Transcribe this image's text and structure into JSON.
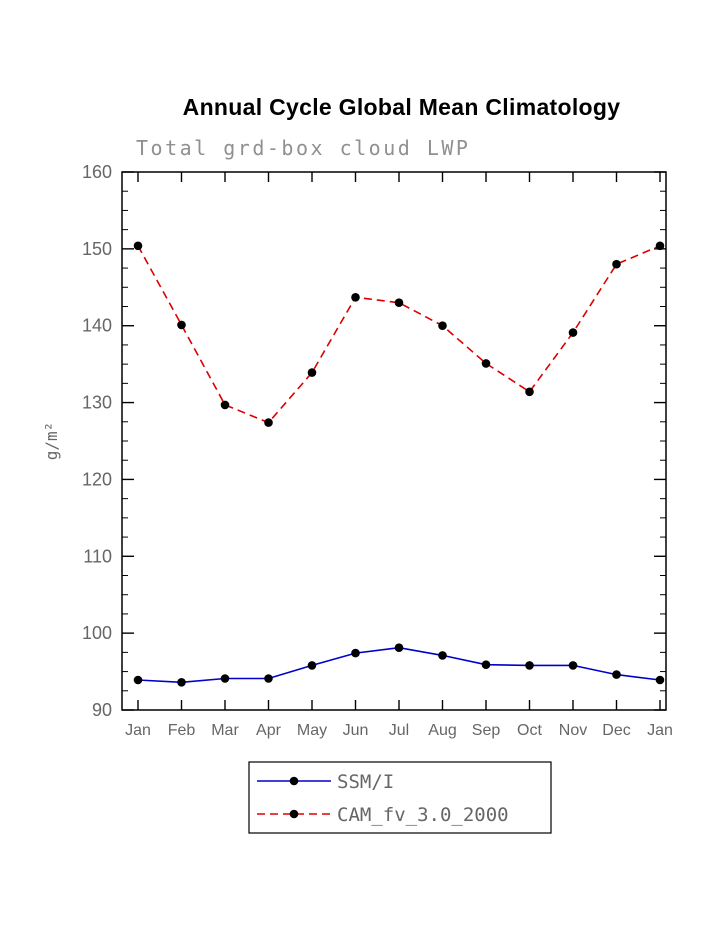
{
  "page": {
    "title": "Annual Cycle Global Mean Climatology",
    "subtitle": "Total grd-box cloud LWP"
  },
  "chart_data": {
    "type": "line",
    "title": "Annual Cycle Global Mean Climatology",
    "subtitle": "Total grd-box cloud LWP",
    "xlabel": "",
    "ylabel": "g/m²",
    "ylim": [
      90,
      160
    ],
    "ytick_step": 10,
    "ytick_minor_step": 2.5,
    "grid": false,
    "categories": [
      "Jan",
      "Feb",
      "Mar",
      "Apr",
      "May",
      "Jun",
      "Jul",
      "Aug",
      "Sep",
      "Oct",
      "Nov",
      "Dec",
      "Jan"
    ],
    "series": [
      {
        "name": "SSM/I",
        "color": "#0000cc",
        "style": "solid",
        "values": [
          93.9,
          93.6,
          94.1,
          94.1,
          95.8,
          97.4,
          98.1,
          97.1,
          95.9,
          95.8,
          95.8,
          94.6,
          93.9
        ]
      },
      {
        "name": "CAM_fv_3.0_2000",
        "color": "#dd0000",
        "style": "dashed",
        "values": [
          150.4,
          140.1,
          129.7,
          127.4,
          133.9,
          143.7,
          143.0,
          140.0,
          135.1,
          131.4,
          139.1,
          148.0,
          150.4
        ]
      }
    ],
    "marker_color": "#000000",
    "axis_color": "#000000",
    "tick_label_color": "#666666",
    "legend": {
      "position": "bottom",
      "entries": [
        "SSM/I",
        "CAM_fv_3.0_2000"
      ]
    }
  }
}
